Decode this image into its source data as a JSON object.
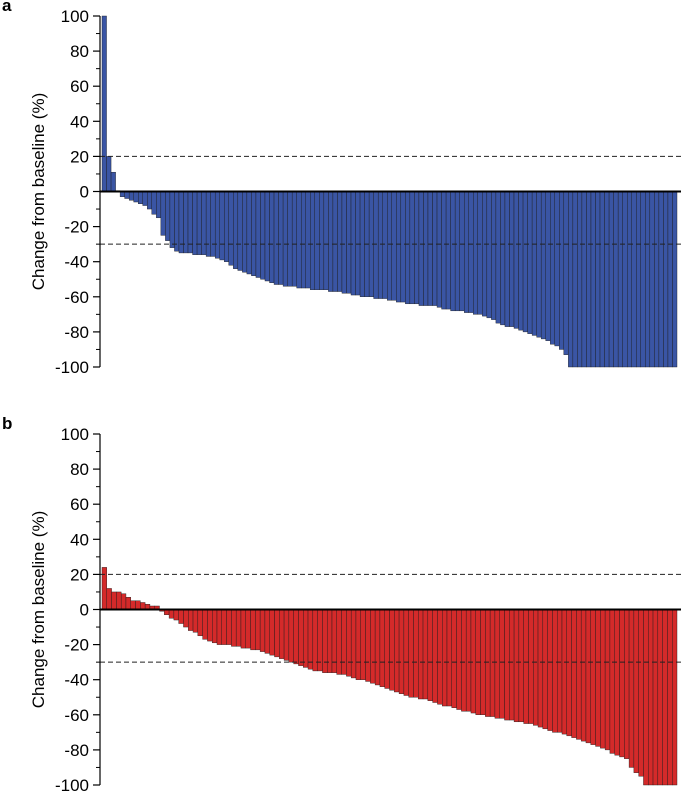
{
  "chart_data": [
    {
      "type": "bar",
      "panel_label": "a",
      "ylabel": "Change from baseline (%)",
      "ylim": [
        -100,
        100
      ],
      "yticks": [
        100,
        80,
        60,
        40,
        20,
        0,
        -20,
        -40,
        -60,
        -80,
        -100
      ],
      "reference_lines": [
        20,
        -30
      ],
      "grid": false,
      "bar_color": "#3a55a4",
      "values": [
        100,
        20,
        11,
        0.5,
        -3,
        -4,
        -5,
        -6,
        -7,
        -8,
        -10,
        -13,
        -15,
        -25,
        -28,
        -32,
        -34,
        -35,
        -35,
        -35,
        -36,
        -36,
        -36,
        -37,
        -37,
        -38,
        -39,
        -40,
        -42,
        -44,
        -45,
        -46,
        -47,
        -48,
        -49,
        -50,
        -51,
        -52,
        -53,
        -53,
        -54,
        -54,
        -54,
        -55,
        -55,
        -55,
        -56,
        -56,
        -56,
        -56,
        -57,
        -57,
        -57,
        -58,
        -58,
        -59,
        -59,
        -60,
        -60,
        -60,
        -61,
        -61,
        -61,
        -62,
        -62,
        -63,
        -63,
        -64,
        -64,
        -64,
        -65,
        -65,
        -65,
        -65,
        -66,
        -67,
        -67,
        -68,
        -68,
        -68,
        -69,
        -69,
        -70,
        -70,
        -71,
        -72,
        -73,
        -75,
        -76,
        -77,
        -77,
        -78,
        -79,
        -80,
        -81,
        -82,
        -83,
        -84,
        -85,
        -87,
        -88,
        -90,
        -93,
        -100,
        -100,
        -100,
        -100,
        -100,
        -100,
        -100,
        -100,
        -100,
        -100,
        -100,
        -100,
        -100,
        -100,
        -100,
        -100,
        -100,
        -100,
        -100,
        -100,
        -100,
        -100,
        -100,
        -100
      ]
    },
    {
      "type": "bar",
      "panel_label": "b",
      "ylabel": "Change from baseline (%)",
      "ylim": [
        -100,
        100
      ],
      "yticks": [
        100,
        80,
        60,
        40,
        20,
        0,
        -20,
        -40,
        -60,
        -80,
        -100
      ],
      "reference_lines": [
        20,
        -30
      ],
      "grid": false,
      "bar_color": "#d42a2a",
      "values": [
        24,
        12,
        10,
        10,
        9,
        7,
        5,
        5,
        4,
        3,
        2,
        2,
        -1,
        -3,
        -5,
        -6,
        -8,
        -10,
        -12,
        -13,
        -15,
        -17,
        -18,
        -19,
        -20,
        -20,
        -20,
        -21,
        -21,
        -22,
        -22,
        -23,
        -23,
        -24,
        -25,
        -26,
        -27,
        -28,
        -29,
        -30,
        -31,
        -32,
        -33,
        -34,
        -35,
        -35,
        -36,
        -36,
        -36,
        -37,
        -37,
        -38,
        -39,
        -40,
        -40,
        -41,
        -42,
        -43,
        -44,
        -45,
        -46,
        -47,
        -48,
        -49,
        -50,
        -50,
        -51,
        -51,
        -52,
        -53,
        -54,
        -55,
        -55,
        -56,
        -57,
        -58,
        -58,
        -59,
        -60,
        -60,
        -61,
        -61,
        -62,
        -62,
        -63,
        -63,
        -64,
        -64,
        -65,
        -65,
        -66,
        -67,
        -68,
        -69,
        -70,
        -70,
        -71,
        -72,
        -73,
        -74,
        -75,
        -76,
        -77,
        -78,
        -79,
        -80,
        -82,
        -83,
        -84,
        -85,
        -90,
        -93,
        -95,
        -100,
        -100,
        -100,
        -100,
        -100,
        -100,
        -100
      ]
    }
  ]
}
